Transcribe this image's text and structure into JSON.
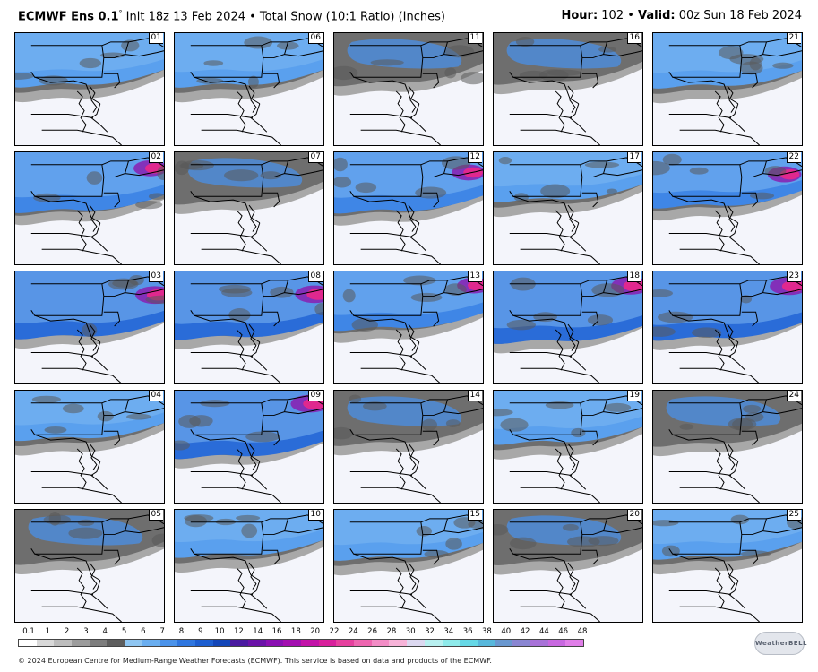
{
  "header": {
    "model": "ECMWF Ens 0.1",
    "degree": "°",
    "description": " Init 18z 13 Feb 2024 • Total Snow (10:1 Ratio) (Inches)",
    "hour_label": "Hour:",
    "hour_value": " 102 • ",
    "valid_label": "Valid:",
    "valid_value": " 00z Sun 18 Feb 2024"
  },
  "panels": [
    {
      "member": "01",
      "level": 2
    },
    {
      "member": "06",
      "level": 2
    },
    {
      "member": "11",
      "level": 1
    },
    {
      "member": "16",
      "level": 1
    },
    {
      "member": "21",
      "level": 2
    },
    {
      "member": "02",
      "level": 3
    },
    {
      "member": "07",
      "level": 1
    },
    {
      "member": "12",
      "level": 3
    },
    {
      "member": "17",
      "level": 2
    },
    {
      "member": "22",
      "level": 3
    },
    {
      "member": "03",
      "level": 4
    },
    {
      "member": "08",
      "level": 4
    },
    {
      "member": "13",
      "level": 3
    },
    {
      "member": "18",
      "level": 4
    },
    {
      "member": "23",
      "level": 4
    },
    {
      "member": "04",
      "level": 2
    },
    {
      "member": "09",
      "level": 4
    },
    {
      "member": "14",
      "level": 1
    },
    {
      "member": "19",
      "level": 2
    },
    {
      "member": "24",
      "level": 1
    },
    {
      "member": "05",
      "level": 1
    },
    {
      "member": "10",
      "level": 2
    },
    {
      "member": "15",
      "level": 2
    },
    {
      "member": "20",
      "level": 1
    },
    {
      "member": "25",
      "level": 2
    }
  ],
  "legend": {
    "ticks": [
      "0.1",
      "1",
      "2",
      "3",
      "4",
      "5",
      "6",
      "7",
      "8",
      "9",
      "10",
      "12",
      "14",
      "16",
      "18",
      "20",
      "22",
      "24",
      "26",
      "28",
      "30",
      "32",
      "34",
      "36",
      "38",
      "40",
      "42",
      "44",
      "46",
      "48"
    ],
    "colors": [
      "#ffffff",
      "#d9d9d9",
      "#bdbdbd",
      "#9c9c9c",
      "#7d7d7d",
      "#5e5e5e",
      "#8fc6f2",
      "#6aaef0",
      "#4b93ea",
      "#2f76df",
      "#1d5ed0",
      "#1346b8",
      "#4a1aa0",
      "#6a12a8",
      "#8a0fb2",
      "#a30fb0",
      "#c213a8",
      "#d8209c",
      "#e6409e",
      "#ee66b0",
      "#f38dc6",
      "#f7b3d8",
      "#dcd8f0",
      "#b8f0f0",
      "#8eeaea",
      "#66d8e6",
      "#58b8dc",
      "#6a98d0",
      "#8a86d2",
      "#a872d8",
      "#c868e0",
      "#e07ee8"
    ],
    "alt_colors": [
      "#ffffff"
    ]
  },
  "footer": "© 2024 European Centre for Medium-Range Weather Forecasts (ECMWF). This service is based on data and products of the ECMWF.",
  "logo": "WeatherBELL"
}
